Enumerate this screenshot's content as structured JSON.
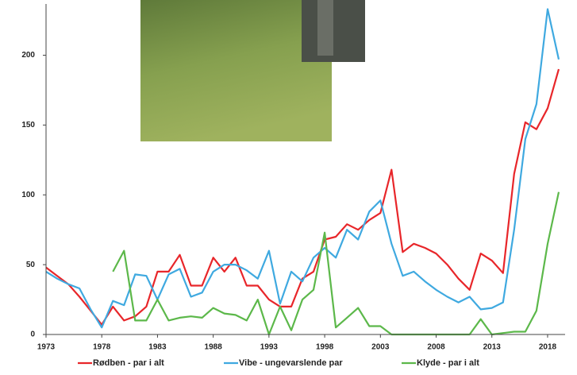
{
  "chart_data": {
    "type": "line",
    "x": [
      1973,
      1974,
      1975,
      1976,
      1977,
      1978,
      1979,
      1980,
      1981,
      1982,
      1983,
      1984,
      1985,
      1986,
      1987,
      1988,
      1989,
      1990,
      1991,
      1992,
      1993,
      1994,
      1995,
      1996,
      1997,
      1998,
      1999,
      2000,
      2001,
      2002,
      2003,
      2004,
      2005,
      2006,
      2007,
      2008,
      2009,
      2010,
      2011,
      2012,
      2013,
      2014,
      2015,
      2016,
      2017,
      2018,
      2019
    ],
    "series": [
      {
        "name": "Rødben - par i alt",
        "color": "#e8262a",
        "values": [
          48,
          42,
          36,
          27,
          17,
          7,
          20,
          10,
          13,
          20,
          45,
          45,
          57,
          35,
          35,
          55,
          45,
          55,
          35,
          35,
          25,
          20,
          20,
          40,
          45,
          68,
          70,
          79,
          75,
          82,
          87,
          118,
          59,
          65,
          62,
          58,
          50,
          40,
          32,
          58,
          53,
          44,
          115,
          152,
          147,
          162,
          190
        ]
      },
      {
        "name": "Vibe - ungevarslende par",
        "color": "#3fa9e0",
        "values": [
          45,
          40,
          36,
          33,
          18,
          5,
          24,
          21,
          43,
          42,
          25,
          43,
          47,
          27,
          30,
          45,
          50,
          50,
          46,
          40,
          60,
          22,
          45,
          38,
          55,
          62,
          55,
          75,
          68,
          88,
          96,
          65,
          42,
          45,
          38,
          32,
          27,
          23,
          27,
          18,
          19,
          23,
          75,
          140,
          165,
          233,
          197
        ]
      },
      {
        "name": "Klyde - par i alt",
        "color": "#5cb84a",
        "values": [
          null,
          null,
          null,
          null,
          null,
          null,
          45,
          60,
          10,
          10,
          25,
          10,
          12,
          13,
          12,
          19,
          15,
          14,
          10,
          25,
          0,
          20,
          3,
          25,
          32,
          73,
          5,
          12,
          19,
          6,
          6,
          0,
          0,
          0,
          0,
          0,
          0,
          0,
          0,
          11,
          0,
          1,
          2,
          2,
          17,
          65,
          102
        ]
      }
    ],
    "xlim": [
      1973,
      2019
    ],
    "ylim": [
      0,
      235
    ],
    "xticks": [
      1973,
      1978,
      1983,
      1988,
      1993,
      1998,
      2003,
      2008,
      2013,
      2018
    ],
    "yticks": [
      0,
      50,
      100,
      150,
      200
    ]
  }
}
